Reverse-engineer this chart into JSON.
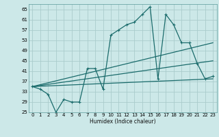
{
  "xlabel": "Humidex (Indice chaleur)",
  "ylabel": "",
  "background_color": "#cce8e8",
  "grid_color": "#aacccc",
  "line_color": "#1a6b6b",
  "xlim": [
    -0.5,
    23.5
  ],
  "ylim": [
    25,
    67
  ],
  "xticks": [
    0,
    1,
    2,
    3,
    4,
    5,
    6,
    7,
    8,
    9,
    10,
    11,
    12,
    13,
    14,
    15,
    16,
    17,
    18,
    19,
    20,
    21,
    22,
    23
  ],
  "yticks": [
    25,
    29,
    33,
    37,
    41,
    45,
    49,
    53,
    57,
    61,
    65
  ],
  "line1_x": [
    0,
    1,
    2,
    3,
    4,
    5,
    6,
    7,
    8,
    9,
    10,
    11,
    12,
    13,
    14,
    15,
    16,
    17,
    18,
    19,
    20,
    21,
    22,
    23
  ],
  "line1_y": [
    35,
    34,
    32,
    25,
    30,
    29,
    29,
    42,
    42,
    34,
    55,
    57,
    59,
    60,
    63,
    66,
    38,
    63,
    59,
    52,
    52,
    44,
    38,
    39
  ],
  "line2_x": [
    0,
    23
  ],
  "line2_y": [
    35,
    52
  ],
  "line3_x": [
    0,
    23
  ],
  "line3_y": [
    35,
    38
  ],
  "line4_x": [
    0,
    23
  ],
  "line4_y": [
    35,
    45
  ]
}
